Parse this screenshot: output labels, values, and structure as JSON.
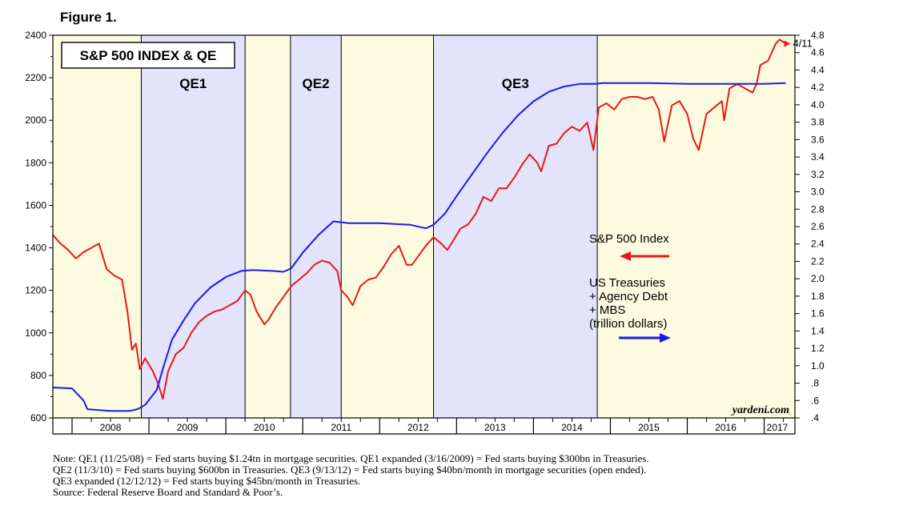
{
  "figure_label": "Figure 1.",
  "watermark": "yardeni.com",
  "notes": [
    "Note: QE1 (11/25/08) = Fed starts buying $1.24tn in mortgage securities. QE1 expanded (3/16/2009) = Fed starts buying $300bn in Treasuries.",
    "QE2 (11/3/10) = Fed starts buying $600bn in Treasuries. QE3 (9/13/12) = Fed starts buying $40bn/month in mortgage securities (open ended).",
    "QE3 expanded (12/12/12) = Fed starts buying $45bn/month in Treasuries.",
    "Source: Federal Reserve Board and Standard & Poor’s."
  ],
  "colors": {
    "sp500": "#e8191a",
    "holdings": "#1a1aee",
    "qe_shade": "#e3e3fb",
    "non_qe_shade": "#fcfbdf"
  },
  "chart_data": {
    "type": "line",
    "title": "S&P 500 INDEX & QE",
    "x_range": [
      2007.75,
      2017.4
    ],
    "x_tick_labels": [
      {
        "label": "2008",
        "year": 2008
      },
      {
        "label": "2009",
        "year": 2009
      },
      {
        "label": "2010",
        "year": 2010
      },
      {
        "label": "2011",
        "year": 2011
      },
      {
        "label": "2012",
        "year": 2012
      },
      {
        "label": "2013",
        "year": 2013
      },
      {
        "label": "2014",
        "year": 2014
      },
      {
        "label": "2015",
        "year": 2015
      },
      {
        "label": "2016",
        "year": 2016
      },
      {
        "label": "2017",
        "year": 2017
      }
    ],
    "left_axis": {
      "ylim": [
        600,
        2400
      ],
      "ticks": [
        "600",
        "800",
        "1000",
        "1200",
        "1400",
        "1600",
        "1800",
        "2000",
        "2200",
        "2400"
      ]
    },
    "right_axis": {
      "ylim": [
        0.4,
        4.8
      ],
      "ticks": [
        ".4",
        ".6",
        ".8",
        "1.0",
        "1.2",
        "1.4",
        "1.6",
        "1.8",
        "2.0",
        "2.2",
        "2.4",
        "2.6",
        "2.8",
        "3.0",
        "3.2",
        "3.4",
        "3.6",
        "3.8",
        "4.0",
        "4.2",
        "4.4",
        "4.6",
        "4.8"
      ]
    },
    "qe_periods": [
      {
        "label": "QE1",
        "start": 2008.9,
        "end": 2010.25
      },
      {
        "label": "QE2",
        "start": 2010.84,
        "end": 2011.5
      },
      {
        "label": "QE3",
        "start": 2012.7,
        "end": 2014.83
      }
    ],
    "series": [
      {
        "name": "S&P 500 Index",
        "axis": "left",
        "note": "weekly approximation",
        "x": [
          2007.75,
          2007.85,
          2007.95,
          2008.05,
          2008.15,
          2008.25,
          2008.35,
          2008.45,
          2008.55,
          2008.65,
          2008.72,
          2008.78,
          2008.83,
          2008.88,
          2008.95,
          2009.05,
          2009.12,
          2009.18,
          2009.25,
          2009.35,
          2009.45,
          2009.55,
          2009.65,
          2009.75,
          2009.85,
          2009.95,
          2010.05,
          2010.15,
          2010.25,
          2010.32,
          2010.4,
          2010.5,
          2010.55,
          2010.65,
          2010.75,
          2010.85,
          2010.95,
          2011.05,
          2011.15,
          2011.25,
          2011.35,
          2011.45,
          2011.5,
          2011.58,
          2011.65,
          2011.75,
          2011.85,
          2011.95,
          2012.05,
          2012.15,
          2012.25,
          2012.35,
          2012.42,
          2012.5,
          2012.6,
          2012.7,
          2012.8,
          2012.88,
          2012.95,
          2013.05,
          2013.15,
          2013.25,
          2013.35,
          2013.45,
          2013.55,
          2013.65,
          2013.75,
          2013.85,
          2013.95,
          2014.05,
          2014.1,
          2014.2,
          2014.3,
          2014.4,
          2014.5,
          2014.6,
          2014.7,
          2014.78,
          2014.85,
          2014.95,
          2015.05,
          2015.15,
          2015.25,
          2015.35,
          2015.45,
          2015.55,
          2015.63,
          2015.7,
          2015.8,
          2015.9,
          2016.0,
          2016.08,
          2016.15,
          2016.25,
          2016.35,
          2016.45,
          2016.48,
          2016.55,
          2016.65,
          2016.75,
          2016.85,
          2016.9,
          2016.95,
          2017.05,
          2017.15,
          2017.2,
          2017.28
        ],
        "values": [
          1460,
          1420,
          1390,
          1350,
          1380,
          1400,
          1420,
          1300,
          1270,
          1250,
          1100,
          920,
          950,
          830,
          880,
          820,
          760,
          690,
          820,
          900,
          930,
          1000,
          1050,
          1080,
          1100,
          1110,
          1130,
          1150,
          1200,
          1180,
          1100,
          1040,
          1060,
          1120,
          1170,
          1220,
          1250,
          1280,
          1320,
          1340,
          1330,
          1290,
          1200,
          1170,
          1130,
          1220,
          1250,
          1260,
          1310,
          1370,
          1410,
          1320,
          1320,
          1360,
          1410,
          1450,
          1420,
          1390,
          1430,
          1490,
          1510,
          1560,
          1640,
          1620,
          1680,
          1680,
          1730,
          1790,
          1840,
          1800,
          1760,
          1880,
          1890,
          1940,
          1970,
          1950,
          1990,
          1860,
          2060,
          2080,
          2050,
          2100,
          2110,
          2110,
          2100,
          2110,
          2050,
          1900,
          2070,
          2090,
          2030,
          1910,
          1860,
          2030,
          2060,
          2090,
          2000,
          2150,
          2170,
          2150,
          2130,
          2170,
          2260,
          2280,
          2360,
          2380,
          2360
        ]
      },
      {
        "name": "US Treasuries + Agency Debt + MBS (trillion dollars)",
        "axis": "right",
        "note": "weekly approximation",
        "x": [
          2007.75,
          2008.0,
          2008.15,
          2008.2,
          2008.5,
          2008.75,
          2008.85,
          2008.95,
          2009.1,
          2009.2,
          2009.3,
          2009.45,
          2009.6,
          2009.8,
          2010.0,
          2010.2,
          2010.35,
          2010.6,
          2010.75,
          2010.85,
          2011.0,
          2011.2,
          2011.4,
          2011.5,
          2011.6,
          2012.0,
          2012.4,
          2012.6,
          2012.7,
          2012.85,
          2013.0,
          2013.2,
          2013.4,
          2013.6,
          2013.8,
          2014.0,
          2014.2,
          2014.4,
          2014.6,
          2014.8,
          2014.9,
          2015.5,
          2016.0,
          2016.5,
          2016.8,
          2017.0,
          2017.28
        ],
        "values": [
          0.75,
          0.74,
          0.6,
          0.5,
          0.48,
          0.48,
          0.5,
          0.55,
          0.72,
          1.02,
          1.3,
          1.52,
          1.72,
          1.9,
          2.02,
          2.09,
          2.1,
          2.09,
          2.08,
          2.12,
          2.3,
          2.5,
          2.66,
          2.65,
          2.64,
          2.64,
          2.62,
          2.58,
          2.62,
          2.75,
          2.95,
          3.2,
          3.45,
          3.68,
          3.88,
          4.04,
          4.15,
          4.21,
          4.24,
          4.24,
          4.25,
          4.25,
          4.24,
          4.24,
          4.24,
          4.24,
          4.25
        ]
      }
    ],
    "annotations": {
      "sp_label": "S&P 500 Index",
      "holdings_label_lines": [
        "US Treasuries",
        "+ Agency Debt",
        "+ MBS",
        "(trillion dollars)"
      ],
      "date_label": "4/11"
    }
  }
}
